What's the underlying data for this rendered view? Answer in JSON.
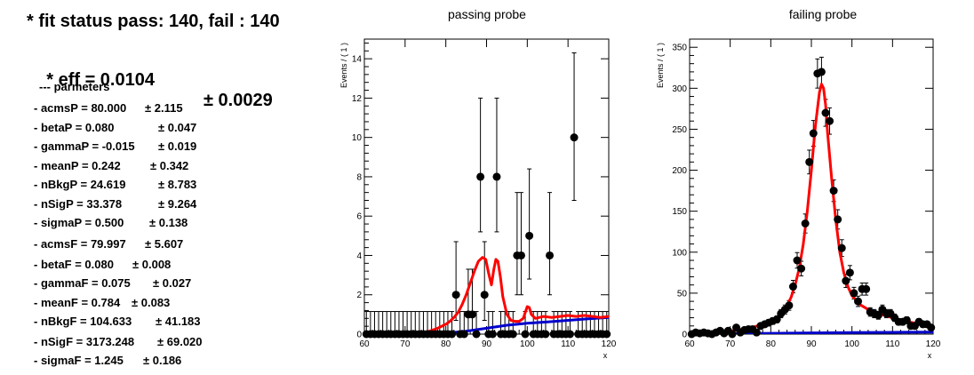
{
  "fit_panel": {
    "status": "* fit status pass: 140, fail : 140",
    "eff_value": "* eff = 0.0104",
    "eff_error": "± 0.0029",
    "params_title": "--- parmeters",
    "params": [
      {
        "name": "- acmsP = 80.000",
        "err": "± 2.115"
      },
      {
        "name": "- betaP = 0.080",
        "err": "± 0.047"
      },
      {
        "name": "- gammaP = -0.015",
        "err": "± 0.019"
      },
      {
        "name": "- meanP = 0.242",
        "err": "± 0.342"
      },
      {
        "name": "- nBkgP = 24.619",
        "err": "± 8.783"
      },
      {
        "name": "- nSigP = 33.378",
        "err": "± 9.264"
      },
      {
        "name": "- sigmaP = 0.500",
        "err": "± 0.138"
      },
      {
        "name": "- acmsF = 79.997",
        "err": "± 5.607"
      },
      {
        "name": "- betaF = 0.080",
        "err": "± 0.008"
      },
      {
        "name": "- gammaF = 0.075",
        "err": "± 0.027"
      },
      {
        "name": "- meanF = 0.784",
        "err": "± 0.083"
      },
      {
        "name": "- nBkgF = 104.633",
        "err": "± 41.183"
      },
      {
        "name": "- nSigF = 3173.248",
        "err": "± 69.020"
      },
      {
        "name": "- sigmaF = 1.245",
        "err": "± 0.186"
      }
    ]
  },
  "chart_data": [
    {
      "type": "scatter",
      "title": "passing probe",
      "xlabel": "x",
      "ylabel": "Events / ( 1 )",
      "xlim": [
        60,
        120
      ],
      "ylim": [
        0,
        15
      ],
      "xticks": [
        60,
        70,
        80,
        90,
        100,
        110,
        120
      ],
      "yticks": [
        0,
        2,
        4,
        6,
        8,
        10,
        12,
        14
      ],
      "colors": {
        "data": "#000000",
        "total_fit": "#ff0000",
        "background_fit": "#0000cc"
      },
      "data": {
        "x": [
          60.5,
          61.5,
          62.5,
          63.5,
          64.5,
          65.5,
          66.5,
          67.5,
          68.5,
          69.5,
          70.5,
          71.5,
          72.5,
          73.5,
          74.5,
          75.5,
          76.5,
          77.5,
          78.5,
          79.5,
          80.5,
          81.5,
          82.5,
          83.5,
          84.5,
          85.5,
          86.5,
          87.5,
          88.5,
          89.5,
          90.5,
          91.5,
          92.5,
          93.5,
          94.5,
          95.5,
          96.5,
          97.5,
          98.5,
          99.5,
          100.5,
          101.5,
          102.5,
          103.5,
          104.5,
          105.5,
          106.5,
          107.5,
          108.5,
          109.5,
          110.5,
          111.5,
          112.5,
          113.5,
          114.5,
          115.5,
          116.5,
          117.5,
          118.5,
          119.5
        ],
        "y": [
          0,
          0,
          0,
          0,
          0,
          0,
          0,
          0,
          0,
          0,
          0,
          0,
          0,
          0,
          0,
          0,
          0,
          0,
          0,
          0,
          0,
          0,
          2,
          0,
          0,
          1,
          1,
          0,
          8,
          2,
          0,
          0,
          8,
          0,
          0,
          0,
          0,
          4,
          4,
          0,
          5,
          0,
          0,
          0,
          0,
          4,
          0,
          0,
          0,
          0,
          0,
          10,
          0,
          0,
          0,
          0,
          0,
          0,
          0,
          0
        ],
        "yerr_low": [
          0,
          0,
          0,
          0,
          0,
          0,
          0,
          0,
          0,
          0,
          0,
          0,
          0,
          0,
          0,
          0,
          0,
          0,
          0,
          0,
          0,
          0,
          1.3,
          0,
          0,
          0.8,
          0.8,
          0,
          2.8,
          1.3,
          0,
          0,
          2.8,
          0,
          0,
          0,
          0,
          2.0,
          2.0,
          0,
          2.2,
          0,
          0,
          0,
          0,
          2.0,
          0,
          0,
          0,
          0,
          0,
          3.2,
          0,
          0,
          0,
          0,
          0,
          0,
          0,
          0
        ],
        "yerr_high": [
          1.15,
          1.15,
          1.15,
          1.15,
          1.15,
          1.15,
          1.15,
          1.15,
          1.15,
          1.15,
          1.15,
          1.15,
          1.15,
          1.15,
          1.15,
          1.15,
          1.15,
          1.15,
          1.15,
          1.15,
          1.15,
          1.15,
          2.7,
          1.15,
          1.15,
          2.3,
          2.3,
          1.15,
          4.0,
          2.7,
          1.15,
          1.15,
          4.0,
          1.15,
          1.15,
          1.15,
          1.15,
          3.2,
          3.2,
          1.15,
          3.4,
          1.15,
          1.15,
          1.15,
          1.15,
          3.2,
          1.15,
          1.15,
          1.15,
          1.15,
          1.15,
          4.3,
          1.15,
          1.15,
          1.15,
          1.15,
          1.15,
          1.15,
          1.15,
          1.15
        ]
      },
      "total_fit": {
        "x": [
          60,
          65,
          70,
          73,
          76,
          78,
          80,
          81,
          82,
          83,
          84,
          85,
          86,
          87,
          88,
          89,
          89.8,
          90.5,
          91.2,
          91.8,
          92.3,
          92.8,
          93.4,
          94,
          95,
          96,
          97,
          98,
          99,
          100,
          100.5,
          101,
          102,
          104,
          106,
          108,
          110,
          112,
          114,
          116,
          118,
          120
        ],
        "y": [
          0,
          0,
          0,
          0.05,
          0.15,
          0.3,
          0.5,
          0.65,
          0.85,
          1.1,
          1.5,
          2.0,
          2.6,
          3.2,
          3.7,
          3.9,
          3.8,
          3.1,
          2.5,
          3.3,
          3.8,
          3.7,
          2.9,
          1.9,
          1.0,
          0.7,
          0.65,
          0.65,
          0.8,
          1.4,
          1.35,
          1.0,
          0.8,
          0.9,
          0.85,
          0.9,
          0.95,
          0.9,
          0.95,
          0.9,
          0.85,
          0.9
        ]
      },
      "background_fit": {
        "x": [
          60,
          70,
          75,
          80,
          85,
          90,
          95,
          100,
          105,
          110,
          115,
          120
        ],
        "y": [
          0,
          0,
          0.02,
          0.05,
          0.15,
          0.3,
          0.45,
          0.55,
          0.62,
          0.7,
          0.78,
          0.85
        ]
      }
    },
    {
      "type": "scatter",
      "title": "failing probe",
      "xlabel": "x",
      "ylabel": "Events / ( 1 )",
      "xlim": [
        60,
        120
      ],
      "ylim": [
        0,
        360
      ],
      "xticks": [
        60,
        70,
        80,
        90,
        100,
        110,
        120
      ],
      "yticks": [
        0,
        50,
        100,
        150,
        200,
        250,
        300,
        350
      ],
      "colors": {
        "data": "#000000",
        "total_fit": "#ff0000",
        "background_fit": "#0000cc"
      },
      "data": {
        "x": [
          60.5,
          61.5,
          62.5,
          63.5,
          64.5,
          65.5,
          66.5,
          67.5,
          68.5,
          69.5,
          70.5,
          71.5,
          72.5,
          73.5,
          74.5,
          75.5,
          76.5,
          77.5,
          78.5,
          79.5,
          80.5,
          81.5,
          82.5,
          83.5,
          84.5,
          85.5,
          86.5,
          87.5,
          88.5,
          89.5,
          90.5,
          91.5,
          92.5,
          93.5,
          94.5,
          95.5,
          96.5,
          97.5,
          98.5,
          99.5,
          100.5,
          101.5,
          102.5,
          103.5,
          104.5,
          105.5,
          106.5,
          107.5,
          108.5,
          109.5,
          110.5,
          111.5,
          112.5,
          113.5,
          114.5,
          115.5,
          116.5,
          117.5,
          118.5,
          119.5
        ],
        "y": [
          0,
          2,
          1,
          2,
          1,
          0,
          2,
          4,
          1,
          4,
          0,
          8,
          2,
          5,
          6,
          6,
          2,
          10,
          12,
          14,
          16,
          18,
          25,
          30,
          35,
          58,
          90,
          80,
          135,
          210,
          245,
          318,
          320,
          270,
          260,
          175,
          140,
          105,
          65,
          75,
          50,
          40,
          55,
          55,
          27,
          25,
          23,
          30,
          25,
          25,
          20,
          15,
          15,
          17,
          10,
          10,
          15,
          12,
          12,
          8
        ],
        "yerr": [
          0.5,
          1.4,
          1,
          1.4,
          1,
          0.5,
          1.4,
          2,
          1,
          2,
          0.5,
          2.8,
          1.4,
          2.2,
          2.4,
          2.4,
          1.4,
          3.2,
          3.5,
          3.7,
          4,
          4.2,
          5,
          5.5,
          5.9,
          7.6,
          9.5,
          8.9,
          11.6,
          14.5,
          15.7,
          17.8,
          17.9,
          16.4,
          16.1,
          13.2,
          11.8,
          10.2,
          8.1,
          8.7,
          7.1,
          6.3,
          7.4,
          7.4,
          5.2,
          5,
          4.8,
          5.5,
          5,
          5,
          4.5,
          3.9,
          3.9,
          4.1,
          3.2,
          3.2,
          3.9,
          3.5,
          3.5,
          2.8
        ]
      },
      "total_fit": {
        "x": [
          60,
          62,
          64,
          66,
          68,
          70,
          72,
          74,
          76,
          78,
          80,
          82,
          84,
          85,
          86,
          87,
          88,
          89,
          90,
          91,
          92,
          92.5,
          93,
          93.5,
          94,
          95,
          96,
          97,
          98,
          99,
          100,
          102,
          104,
          106,
          108,
          110,
          112,
          114,
          116,
          118,
          120
        ],
        "y": [
          0,
          0.5,
          1,
          1.5,
          2.5,
          3.5,
          5,
          7,
          9,
          12,
          16,
          22,
          35,
          45,
          60,
          80,
          110,
          150,
          200,
          255,
          295,
          305,
          300,
          280,
          245,
          190,
          140,
          100,
          75,
          58,
          47,
          36,
          30,
          26,
          23,
          20,
          17,
          15,
          13,
          12,
          10
        ]
      },
      "background_fit": {
        "x": [
          60,
          70,
          80,
          90,
          100,
          110,
          120
        ],
        "y": [
          0,
          0.5,
          1,
          1.5,
          2,
          2.2,
          2.5
        ]
      }
    }
  ]
}
